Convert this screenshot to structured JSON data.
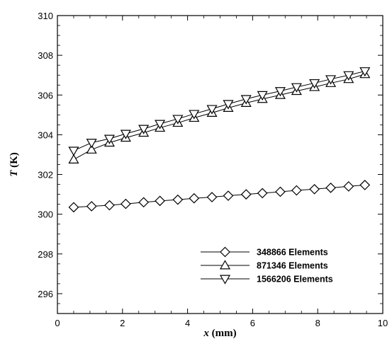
{
  "chart_data": {
    "type": "line",
    "title": "",
    "xlabel_italic": "x",
    "xlabel_unit": " (mm)",
    "ylabel_italic": "T",
    "ylabel_unit": " (K)",
    "xlim": [
      0,
      10
    ],
    "ylim": [
      295,
      310
    ],
    "xticks": [
      0,
      2,
      4,
      6,
      8,
      10
    ],
    "yticks": [
      296,
      298,
      300,
      302,
      304,
      306,
      308,
      310
    ],
    "grid": false,
    "legend_position": "bottom-right",
    "x": [
      0.5,
      1.05,
      1.6,
      2.1,
      2.65,
      3.15,
      3.7,
      4.2,
      4.75,
      5.25,
      5.8,
      6.3,
      6.85,
      7.35,
      7.9,
      8.4,
      8.95,
      9.45
    ],
    "series": [
      {
        "name": "348866 Elements",
        "marker": "diamond",
        "values": [
          300.35,
          300.4,
          300.45,
          300.52,
          300.6,
          300.67,
          300.73,
          300.8,
          300.86,
          300.93,
          301.0,
          301.06,
          301.13,
          301.2,
          301.26,
          301.33,
          301.4,
          301.47
        ]
      },
      {
        "name": "871346 Elements",
        "marker": "triangle-up",
        "values": [
          302.75,
          303.25,
          303.6,
          303.85,
          304.1,
          304.35,
          304.6,
          304.85,
          305.1,
          305.35,
          305.6,
          305.8,
          306.0,
          306.2,
          306.4,
          306.6,
          306.8,
          307.05
        ]
      },
      {
        "name": "1566206 Elements",
        "marker": "triangle-down",
        "values": [
          303.2,
          303.6,
          303.8,
          304.05,
          304.3,
          304.55,
          304.8,
          305.05,
          305.3,
          305.55,
          305.8,
          306.0,
          306.2,
          306.4,
          306.6,
          306.8,
          307.0,
          307.2
        ]
      }
    ]
  }
}
